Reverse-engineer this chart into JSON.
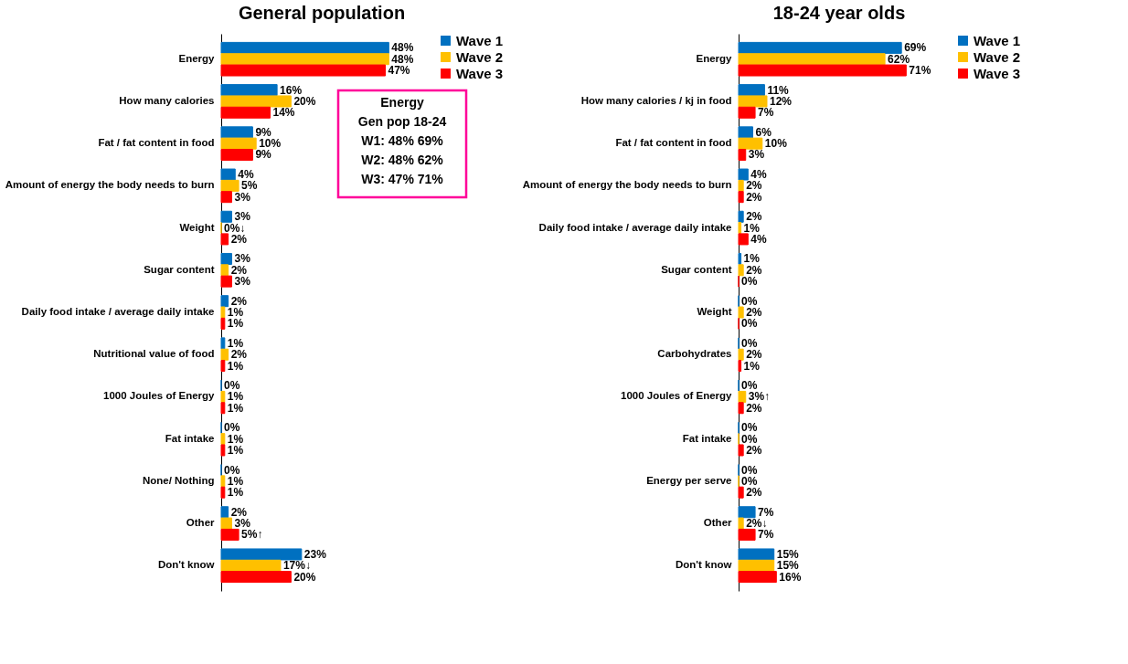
{
  "chart_data": [
    {
      "type": "bar",
      "orientation": "horizontal",
      "title": "General population",
      "legend": "right",
      "categories": [
        "Energy",
        "How many calories",
        "Fat / fat content in food",
        "Amount of energy the body needs to burn",
        "Weight",
        "Sugar content",
        "Daily food intake / average daily intake",
        "Nutritional value of food",
        "1000 Joules of Energy",
        "Fat intake",
        "None/ Nothing",
        "Other",
        "Don't know"
      ],
      "series": [
        {
          "name": "Wave 1",
          "color": "#0070c0",
          "values": [
            48,
            16,
            9,
            4,
            3,
            3,
            2,
            1,
            0,
            0,
            0,
            2,
            23
          ],
          "value_labels": [
            "48%",
            "16%",
            "9%",
            "4%",
            "3%",
            "3%",
            "2%",
            "1%",
            "0%",
            "0%",
            "0%",
            "2%",
            "23%"
          ]
        },
        {
          "name": "Wave 2",
          "color": "#ffc000",
          "values": [
            48,
            20,
            10,
            5,
            0,
            2,
            1,
            2,
            1,
            1,
            1,
            3,
            17
          ],
          "value_labels": [
            "48%",
            "20%",
            "10%",
            "5%",
            "0%↓",
            "2%",
            "1%",
            "2%",
            "1%",
            "1%",
            "1%",
            "3%",
            "17%↓"
          ]
        },
        {
          "name": "Wave 3",
          "color": "#ff0000",
          "values": [
            47,
            14,
            9,
            3,
            2,
            3,
            1,
            1,
            1,
            1,
            1,
            5,
            20
          ],
          "value_labels": [
            "47%",
            "14%",
            "9%",
            "3%",
            "2%",
            "3%",
            "1%",
            "1%",
            "1%",
            "1%",
            "1%",
            "5%↑",
            "20%"
          ]
        }
      ],
      "annotations": [
        "Energy",
        "Gen pop   18-24",
        "W1: 48%   69%",
        "W2: 48%   62%",
        "W3: 47%   71%"
      ]
    },
    {
      "type": "bar",
      "orientation": "horizontal",
      "title": "18-24 year olds",
      "legend": "right",
      "categories": [
        "Energy",
        "How many calories / kj in food",
        "Fat / fat content in food",
        "Amount of energy the body needs to burn",
        "Daily food intake / average daily intake",
        "Sugar content",
        "Weight",
        "Carbohydrates",
        "1000 Joules of Energy",
        "Fat intake",
        "Energy per serve",
        "Other",
        "Don't know"
      ],
      "series": [
        {
          "name": "Wave 1",
          "color": "#0070c0",
          "values": [
            69,
            11,
            6,
            4,
            2,
            1,
            0,
            0,
            0,
            0,
            0,
            7,
            15
          ],
          "value_labels": [
            "69%",
            "11%",
            "6%",
            "4%",
            "2%",
            "1%",
            "0%",
            "0%",
            "0%",
            "0%",
            "0%",
            "7%",
            "15%"
          ]
        },
        {
          "name": "Wave 2",
          "color": "#ffc000",
          "values": [
            62,
            12,
            10,
            2,
            1,
            2,
            2,
            2,
            3,
            0,
            0,
            2,
            15
          ],
          "value_labels": [
            "62%",
            "12%",
            "10%",
            "2%",
            "1%",
            "2%",
            "2%",
            "2%",
            "3%↑",
            "0%",
            "0%",
            "2%↓",
            "15%"
          ]
        },
        {
          "name": "Wave 3",
          "color": "#ff0000",
          "values": [
            71,
            7,
            3,
            2,
            4,
            0,
            0,
            1,
            2,
            2,
            2,
            7,
            16
          ],
          "value_labels": [
            "71%",
            "7%",
            "3%",
            "2%",
            "4%",
            "0%",
            "0%",
            "1%",
            "2%",
            "2%",
            "2%",
            "7%",
            "16%"
          ]
        }
      ]
    }
  ]
}
